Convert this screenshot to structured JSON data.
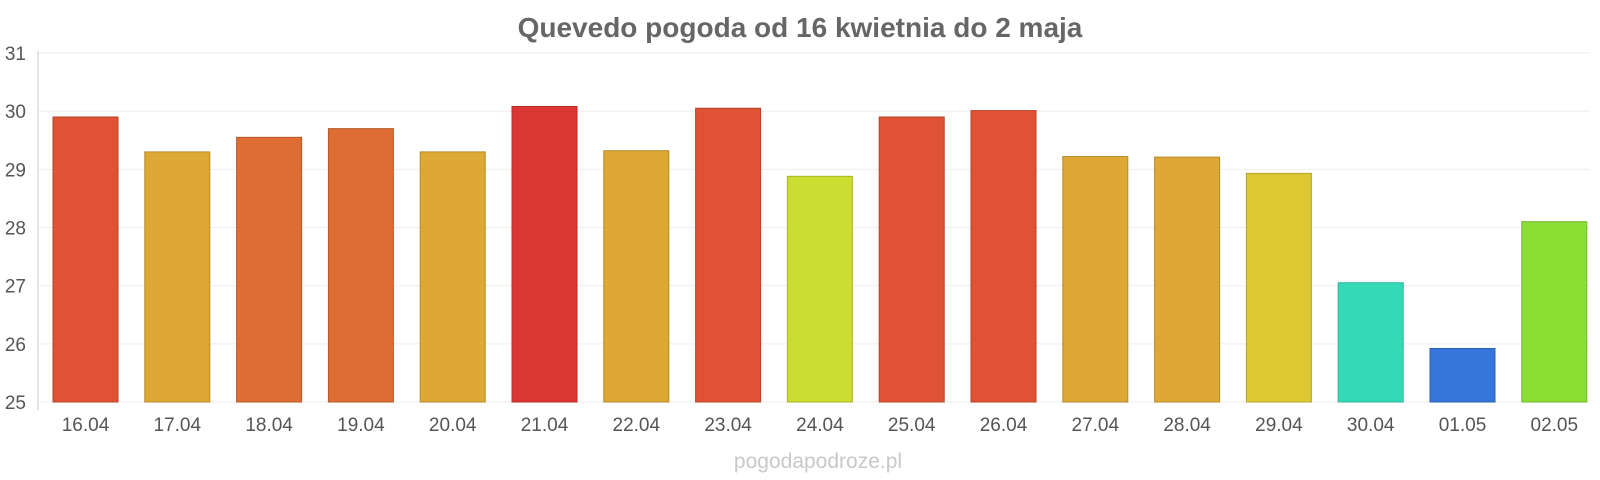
{
  "chart_data": {
    "type": "bar",
    "title": "Quevedo pogoda od 16 kwietnia do 2 maja",
    "xlabel": "",
    "ylabel": "",
    "ylim": [
      25,
      31
    ],
    "yticks": [
      25,
      26,
      27,
      28,
      29,
      30,
      31
    ],
    "grid": true,
    "categories": [
      "16.04",
      "17.04",
      "18.04",
      "19.04",
      "20.04",
      "21.04",
      "22.04",
      "23.04",
      "24.04",
      "25.04",
      "26.04",
      "27.04",
      "28.04",
      "29.04",
      "30.04",
      "01.05",
      "02.05"
    ],
    "values": [
      29.9,
      29.3,
      29.55,
      29.7,
      29.3,
      30.08,
      29.32,
      30.05,
      28.88,
      29.9,
      30.01,
      29.22,
      29.21,
      28.93,
      27.05,
      25.92,
      28.1
    ],
    "colors": [
      "#df5233",
      "#dda833",
      "#de6d33",
      "#de6d33",
      "#dda833",
      "#db3633",
      "#dda833",
      "#df5233",
      "#cddc30",
      "#df5233",
      "#df5233",
      "#dda833",
      "#dda833",
      "#dcc833",
      "#34dab6",
      "#3476da",
      "#8ade34"
    ]
  },
  "watermark": "pogodapodroze.pl"
}
